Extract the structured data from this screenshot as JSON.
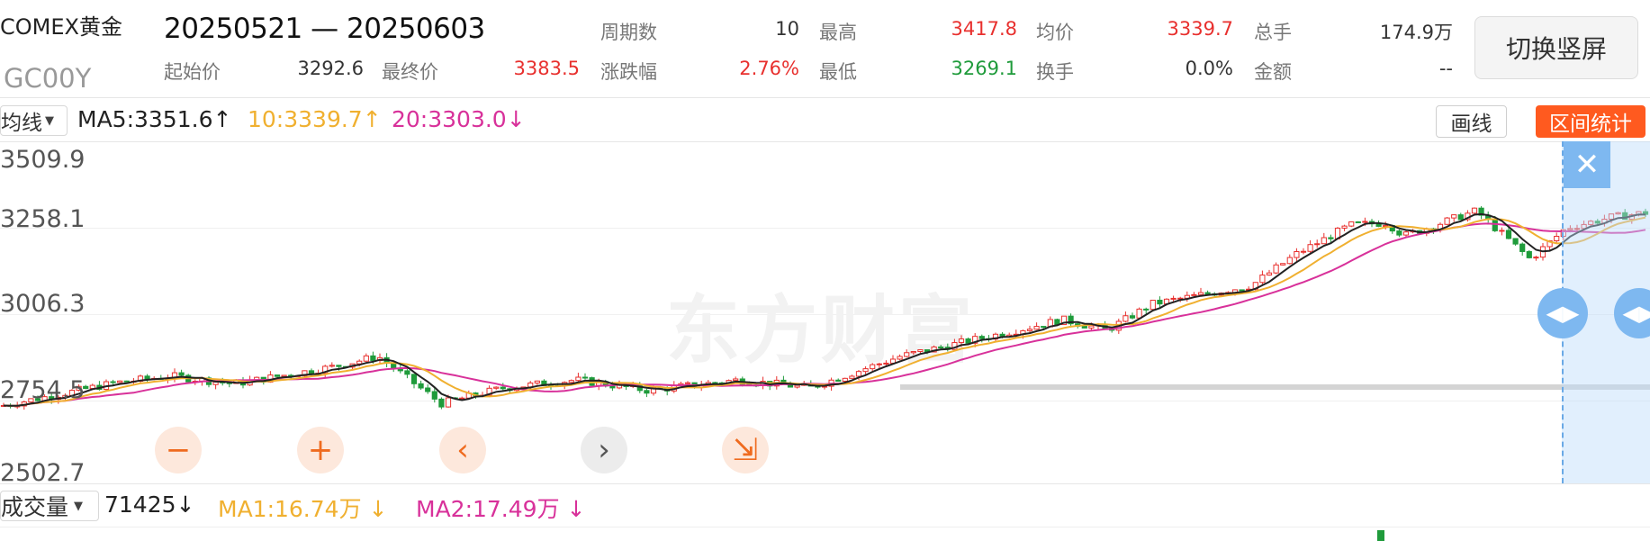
{
  "header": {
    "name": "COMEX黄金",
    "date_range": "20250521 — 20250603",
    "code": "GC00Y",
    "switch_button": "切换竖屏"
  },
  "stats": [
    {
      "label": "周期数",
      "value": "10",
      "color": "dark"
    },
    {
      "label": "最高",
      "value": "3417.8",
      "color": "red"
    },
    {
      "label": "均价",
      "value": "3339.7",
      "color": "red"
    },
    {
      "label": "总手",
      "value": "174.9万",
      "color": "dark"
    },
    {
      "label": "起始价",
      "value": "3292.6",
      "color": "dark"
    },
    {
      "label": "最终价",
      "value": "3383.5",
      "color": "red"
    },
    {
      "label": "涨跌幅",
      "value": "2.76%",
      "color": "red"
    },
    {
      "label": "最低",
      "value": "3269.1",
      "color": "green"
    },
    {
      "label": "换手",
      "value": "0.0%",
      "color": "dark"
    },
    {
      "label": "金额",
      "value": "--",
      "color": "dark"
    }
  ],
  "ma_bar": {
    "selector": "均线",
    "ma5": "MA5:3351.6",
    "ma5_arrow": "↑",
    "ma10": "10:3339.7",
    "ma10_arrow": "↑",
    "ma20": "20:3303.0",
    "ma20_arrow": "↓",
    "draw_button": "画线",
    "stat_button": "区间统计"
  },
  "chart": {
    "watermark": "东方财富",
    "y_labels": [
      "3509.9",
      "3258.1",
      "3006.3",
      "2754.5",
      "2502.7"
    ],
    "colors": {
      "up": "#e8302e",
      "down": "#1f9b3b",
      "ma5": "#222222",
      "ma10": "#f0b030",
      "ma20": "#d8319a"
    }
  },
  "controls": {
    "zoom_out": "−",
    "zoom_in": "+",
    "prev": "‹",
    "next": "›",
    "shrink": "⇲"
  },
  "selection": {
    "close": "✕",
    "handle": "◀▶"
  },
  "volume_bar": {
    "selector": "成交量",
    "value": "71425",
    "value_arrow": "↓",
    "ma1": "MA1:16.74万",
    "ma1_arrow": "↓",
    "ma2": "MA2:17.49万",
    "ma2_arrow": "↓"
  },
  "chart_data": {
    "type": "candlestick",
    "title": "",
    "ylim": [
      2502.7,
      3509.9
    ],
    "series": [
      {
        "name": "MA5",
        "value": 3351.6
      },
      {
        "name": "MA10",
        "value": 3339.7
      },
      {
        "name": "MA20",
        "value": 3303.0
      }
    ],
    "selected_range": {
      "start": "20250521",
      "end": "20250603",
      "high": 3417.8,
      "low": 3269.1,
      "open": 3292.6,
      "close": 3383.5
    }
  }
}
